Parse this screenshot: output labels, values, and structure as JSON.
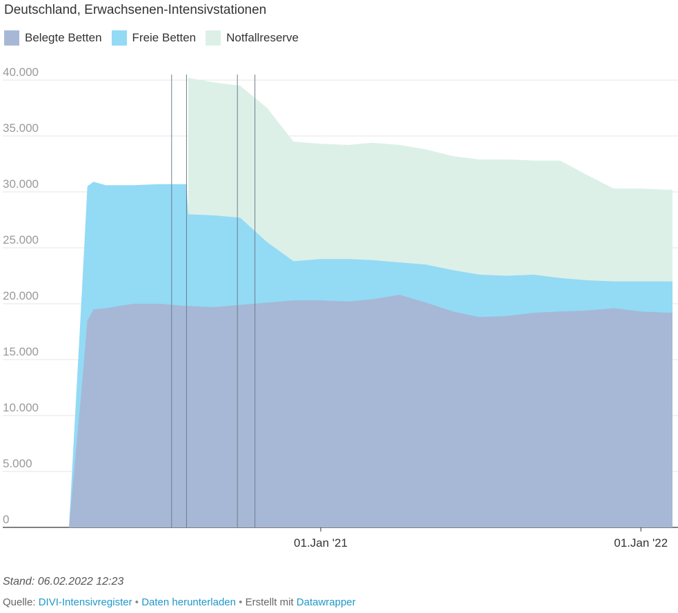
{
  "title": "Deutschland, Erwachsenen-Intensivstationen",
  "legend": [
    {
      "label": "Belegte Betten",
      "color": "#a6b8d6"
    },
    {
      "label": "Freie Betten",
      "color": "#93daf5"
    },
    {
      "label": "Notfallreserve",
      "color": "#dcf0e8"
    }
  ],
  "footer": {
    "stand": "Stand: 06.02.2022 12:23",
    "source_prefix": "Quelle:",
    "source_link": "DIVI-Intensivregister",
    "download_link": "Daten herunterladen",
    "created_prefix": "Erstellt mit",
    "created_link": "Datawrapper",
    "separator": "•"
  },
  "chart_data": {
    "type": "area",
    "stacked": false,
    "title": "Deutschland, Erwachsenen-Intensivstationen",
    "xlabel": "",
    "ylabel": "",
    "x": [
      "2020-03-20",
      "2020-03-27",
      "2020-04-03",
      "2020-04-10",
      "2020-04-17",
      "2020-05-01",
      "2020-06-01",
      "2020-07-01",
      "2020-08-01",
      "2020-08-03",
      "2020-09-01",
      "2020-10-01",
      "2020-11-01",
      "2020-12-01",
      "2021-01-01",
      "2021-02-01",
      "2021-03-01",
      "2021-04-01",
      "2021-05-01",
      "2021-06-01",
      "2021-07-01",
      "2021-08-01",
      "2021-09-01",
      "2021-10-01",
      "2021-11-01",
      "2021-12-01",
      "2022-01-01",
      "2022-02-01"
    ],
    "series": [
      {
        "name": "Notfallreserve",
        "color": "#dcf0e8",
        "values": [
          null,
          null,
          null,
          null,
          null,
          null,
          null,
          null,
          null,
          40200,
          39800,
          39500,
          37500,
          34500,
          34300,
          34200,
          34400,
          34200,
          33800,
          33200,
          32900,
          32900,
          32800,
          32800,
          31500,
          30300,
          30300,
          30200
        ]
      },
      {
        "name": "Freie Betten",
        "color": "#93daf5",
        "values": [
          0,
          10000,
          20000,
          30500,
          30900,
          30600,
          30600,
          30700,
          30700,
          28000,
          27900,
          27700,
          25500,
          23800,
          24000,
          24000,
          23900,
          23700,
          23500,
          23000,
          22600,
          22500,
          22600,
          22300,
          22100,
          22000,
          22000,
          22000
        ]
      },
      {
        "name": "Belegte Betten",
        "color": "#a6b8d6",
        "values": [
          0,
          6000,
          12000,
          18500,
          19500,
          19600,
          20000,
          20000,
          19800,
          19800,
          19700,
          19900,
          20100,
          20300,
          20300,
          20200,
          20400,
          20800,
          20100,
          19300,
          18800,
          18900,
          19200,
          19300,
          19400,
          19600,
          19300,
          19200
        ]
      }
    ],
    "ylim": [
      0,
      40000
    ],
    "yticks": [
      0,
      5000,
      10000,
      15000,
      20000,
      25000,
      30000,
      35000,
      40000
    ],
    "ytick_labels": [
      "0",
      "5.000",
      "10.000",
      "15.000",
      "20.000",
      "25.000",
      "30.000",
      "35.000",
      "40.000"
    ],
    "xticks": [
      "2021-01-01",
      "2022-01-01"
    ],
    "xtick_labels": [
      "01.Jan '21",
      "01.Jan '22"
    ],
    "event_lines": [
      "2020-07-15",
      "2020-08-01",
      "2020-09-28",
      "2020-10-18"
    ],
    "grid": true,
    "legend_position": "top-left"
  }
}
